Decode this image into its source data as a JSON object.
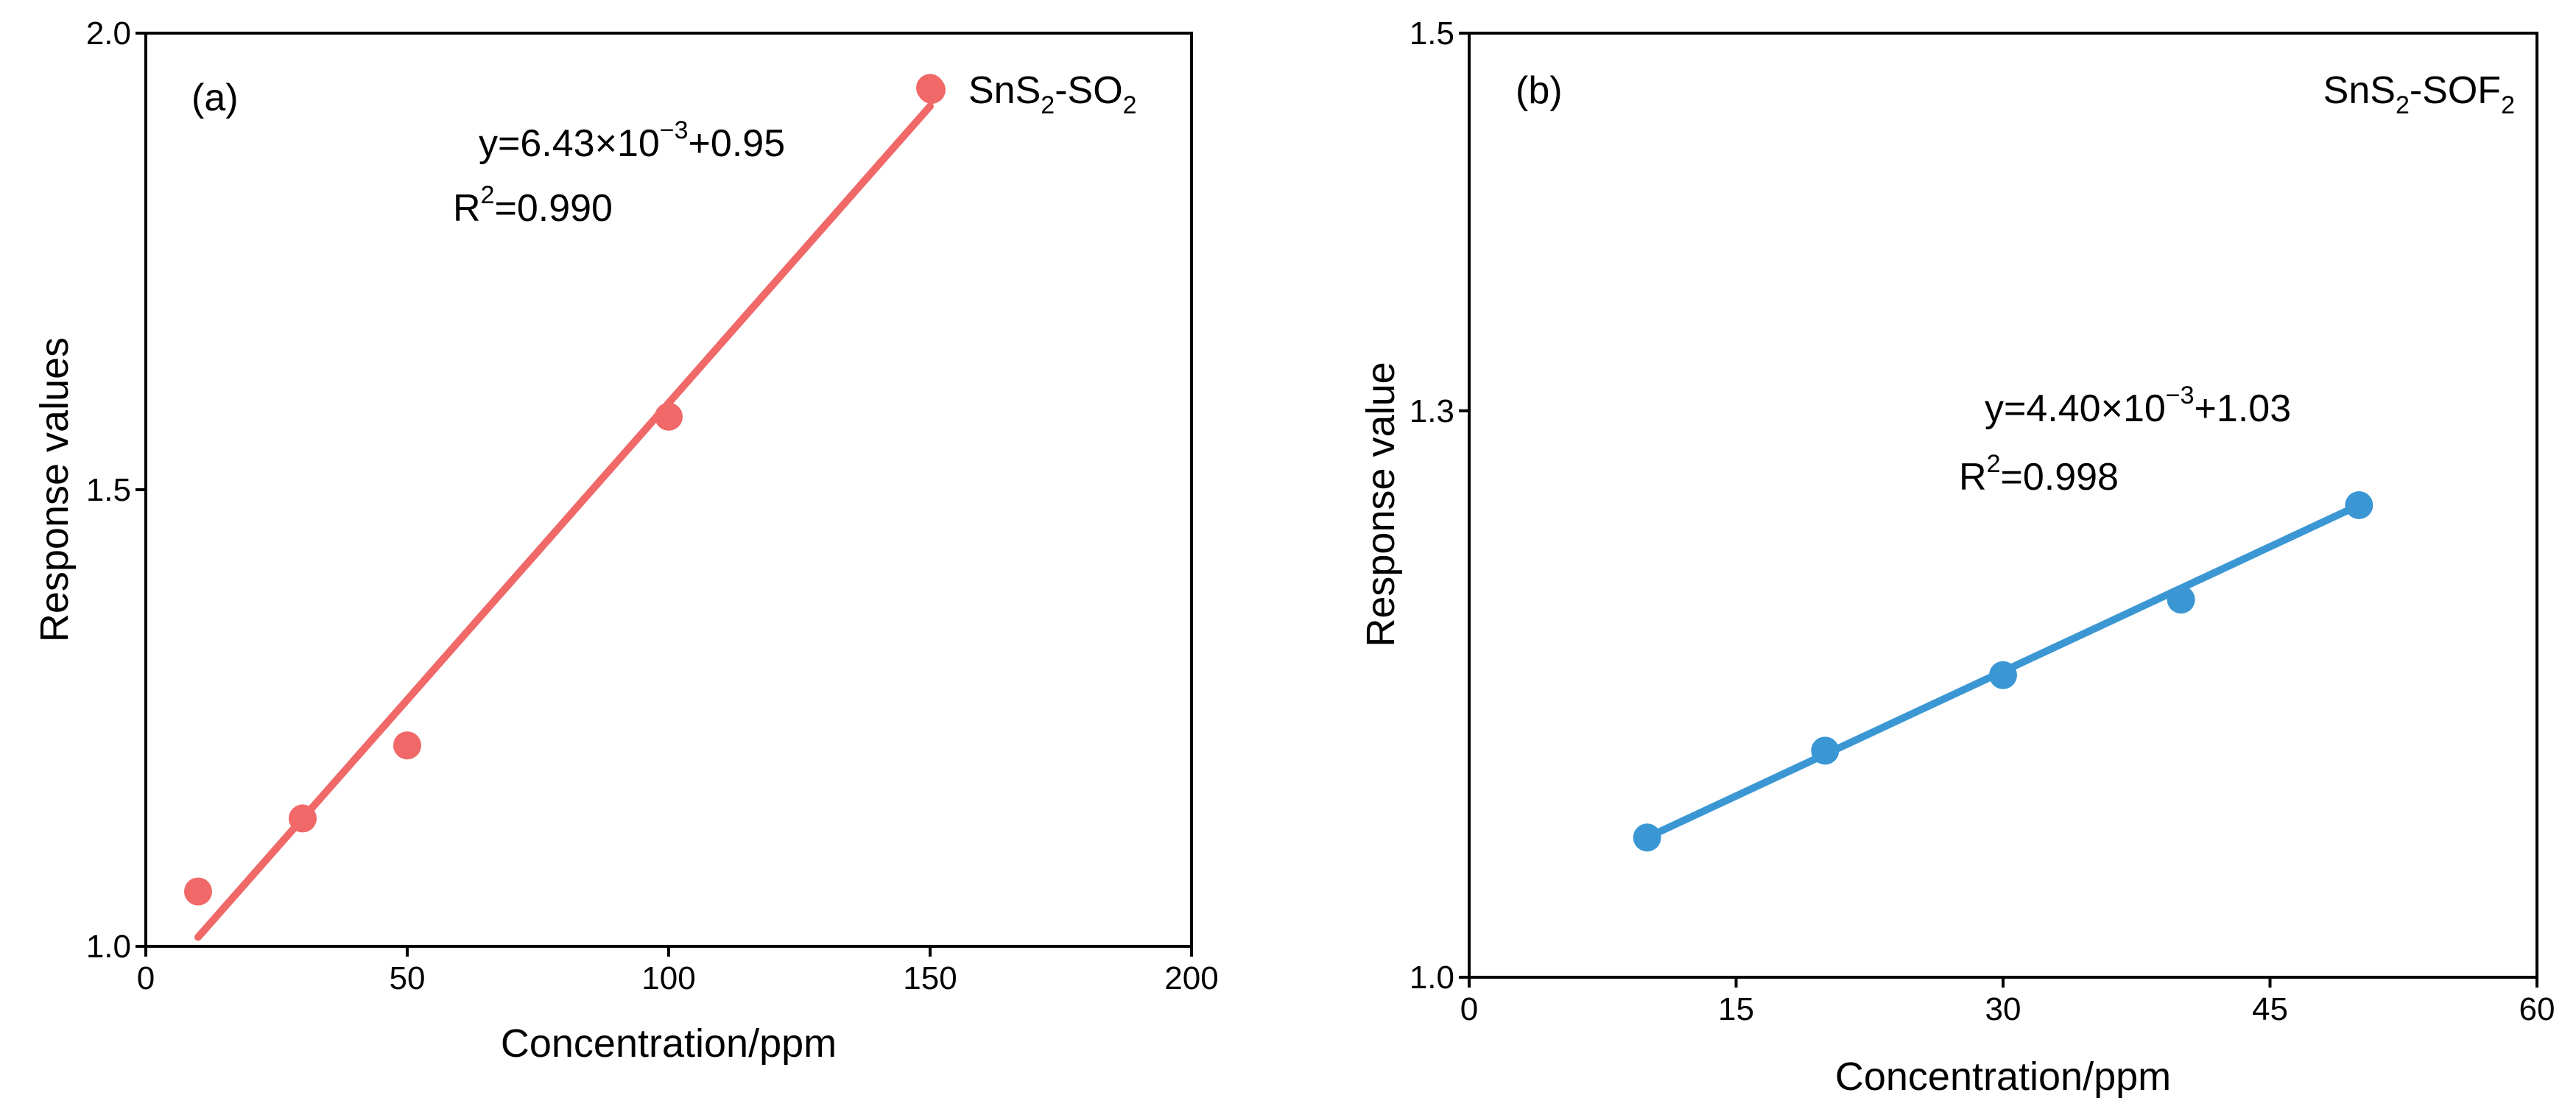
{
  "chart_data": [
    {
      "type": "scatter",
      "panel_label": "(a)",
      "xlabel": "Concentration/ppm",
      "ylabel": "Response values",
      "xlim": [
        0,
        200
      ],
      "ylim": [
        1.0,
        2.0
      ],
      "xticks": [
        0,
        50,
        100,
        150,
        200
      ],
      "xtick_labels": [
        "0",
        "50",
        "100",
        "150",
        "200"
      ],
      "yticks": [
        1.0,
        1.5,
        2.0
      ],
      "ytick_labels": [
        "1.0",
        "1.5",
        "2.0"
      ],
      "color": "#f06868",
      "legend": {
        "label_base": "SnS",
        "sub1": "2",
        "label_mid": "-SO",
        "sub2": "2",
        "position": "top-right"
      },
      "series": [
        {
          "name": "SnS2-SO2",
          "x": [
            10,
            30,
            50,
            100,
            150
          ],
          "y": [
            1.06,
            1.14,
            1.22,
            1.58,
            1.94
          ]
        }
      ],
      "fit": {
        "x": [
          10,
          150
        ],
        "y": [
          1.01,
          1.92
        ]
      },
      "equation": {
        "prefix": "y=6.43×10",
        "exp": "−3",
        "suffix": "+0.95"
      },
      "r2": {
        "prefix": "R",
        "exp": "2",
        "suffix": "=0.990"
      }
    },
    {
      "type": "scatter",
      "panel_label": "(b)",
      "xlabel": "Concentration/ppm",
      "ylabel": "Response value",
      "xlim": [
        0,
        60
      ],
      "ylim": [
        1.0,
        1.5
      ],
      "xticks": [
        0,
        15,
        30,
        45,
        60
      ],
      "xtick_labels": [
        "0",
        "15",
        "30",
        "45",
        "60"
      ],
      "yticks": [
        1.0,
        1.3,
        1.5
      ],
      "ytick_labels": [
        "1.0",
        "1.3",
        "1.5"
      ],
      "color": "#3a97d4",
      "legend": {
        "label_base": "SnS",
        "sub1": "2",
        "label_mid": "-SOF",
        "sub2": "2",
        "position": "top-right"
      },
      "series": [
        {
          "name": "SnS2-SOF2",
          "x": [
            10,
            20,
            30,
            40,
            50
          ],
          "y": [
            1.074,
            1.12,
            1.16,
            1.2,
            1.25
          ]
        }
      ],
      "fit": {
        "x": [
          10,
          50
        ],
        "y": [
          1.074,
          1.25
        ]
      },
      "equation": {
        "prefix": "y=4.40×10",
        "exp": "−3",
        "suffix": "+1.03"
      },
      "r2": {
        "prefix": "R",
        "exp": "2",
        "suffix": "=0.998"
      }
    }
  ]
}
